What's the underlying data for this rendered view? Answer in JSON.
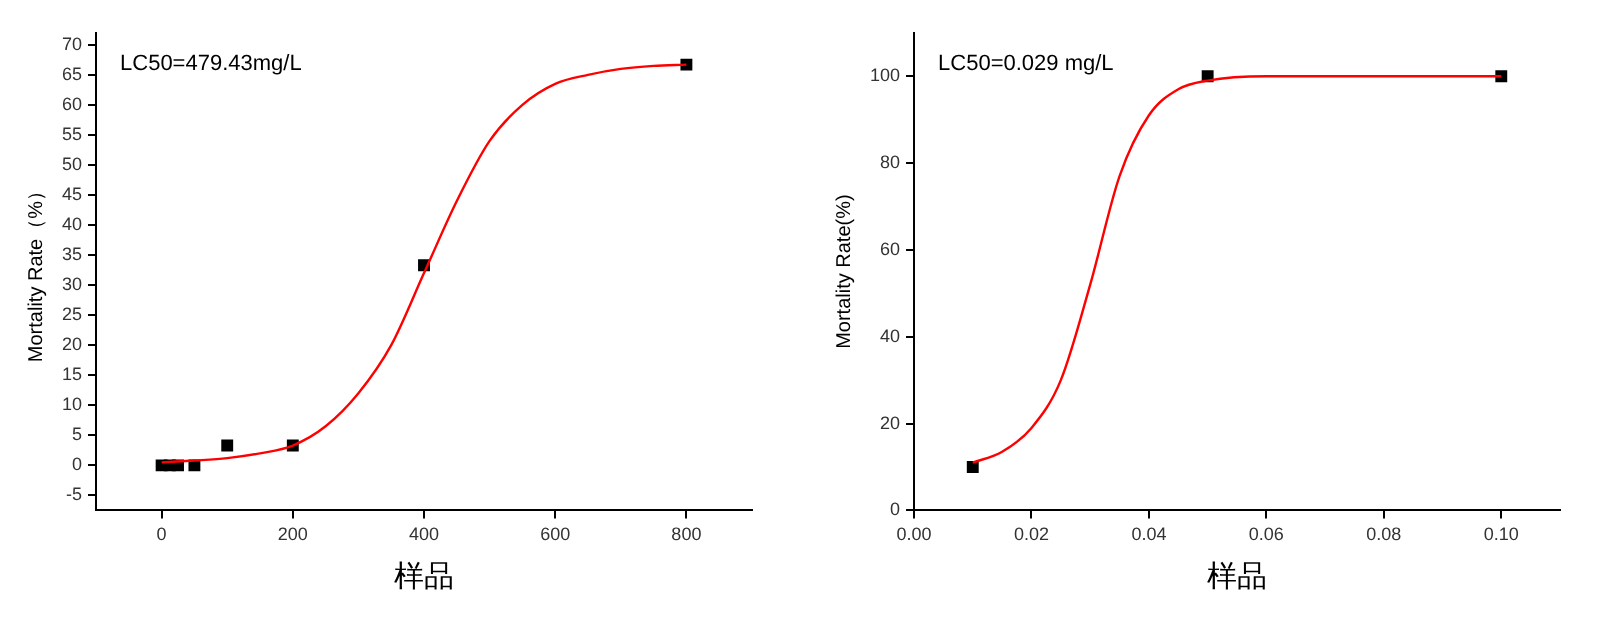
{
  "chart_data": [
    {
      "type": "scatter",
      "xlabel": "样品",
      "ylabel": "Mortality Rate（%）",
      "annotations": [
        "LC50=479.43mg/L"
      ],
      "xlim": [
        -100,
        900
      ],
      "xticks": [
        0,
        200,
        400,
        600,
        800
      ],
      "ylim": [
        -7.5,
        72
      ],
      "yticks": [
        -5,
        0,
        5,
        10,
        15,
        20,
        25,
        30,
        35,
        40,
        45,
        50,
        55,
        60,
        65,
        70
      ],
      "grid": false,
      "legend": false,
      "series": [
        {
          "type": "line",
          "color": "#ff0000",
          "marker": "none",
          "x": [
            0,
            50,
            100,
            150,
            200,
            250,
            300,
            350,
            400,
            450,
            500,
            550,
            600,
            650,
            700,
            750,
            800
          ],
          "values": [
            0.5,
            0.8,
            1.2,
            2,
            3.3,
            6.5,
            12,
            20,
            32,
            44,
            54,
            60,
            63.5,
            65,
            66,
            66.5,
            66.7
          ]
        },
        {
          "color": "#000000",
          "marker": "square",
          "x": [
            0,
            12.5,
            25,
            50,
            100,
            200,
            400,
            800
          ],
          "values": [
            0,
            0,
            0,
            0,
            3.3,
            3.3,
            33.3,
            66.7
          ]
        }
      ]
    },
    {
      "type": "scatter",
      "xlabel": "样品",
      "ylabel": "Mortality Rate(%)",
      "annotations": [
        "LC50=0.029 mg/L"
      ],
      "xlim": [
        0,
        0.11
      ],
      "xticks": [
        {
          "value": 0,
          "label": "0.00"
        },
        {
          "value": 0.02,
          "label": "0.02"
        },
        {
          "value": 0.04,
          "label": "0.04"
        },
        {
          "value": 0.06,
          "label": "0.06"
        },
        {
          "value": 0.08,
          "label": "0.08"
        },
        {
          "value": 0.1,
          "label": "0.10"
        }
      ],
      "ylim": [
        0,
        110
      ],
      "yticks": [
        0,
        20,
        40,
        60,
        80,
        100
      ],
      "grid": false,
      "legend": false,
      "series": [
        {
          "type": "line",
          "color": "#ff0000",
          "marker": "none",
          "x": [
            0.01,
            0.015,
            0.02,
            0.025,
            0.03,
            0.035,
            0.04,
            0.045,
            0.05,
            0.06,
            0.08,
            0.1
          ],
          "values": [
            11,
            13.5,
            19,
            30,
            52,
            77,
            91,
            97,
            99,
            100,
            100,
            100
          ]
        },
        {
          "color": "#000000",
          "marker": "square",
          "x": [
            0.01,
            0.05,
            0.1
          ],
          "values": [
            10,
            100,
            100
          ]
        }
      ]
    }
  ]
}
